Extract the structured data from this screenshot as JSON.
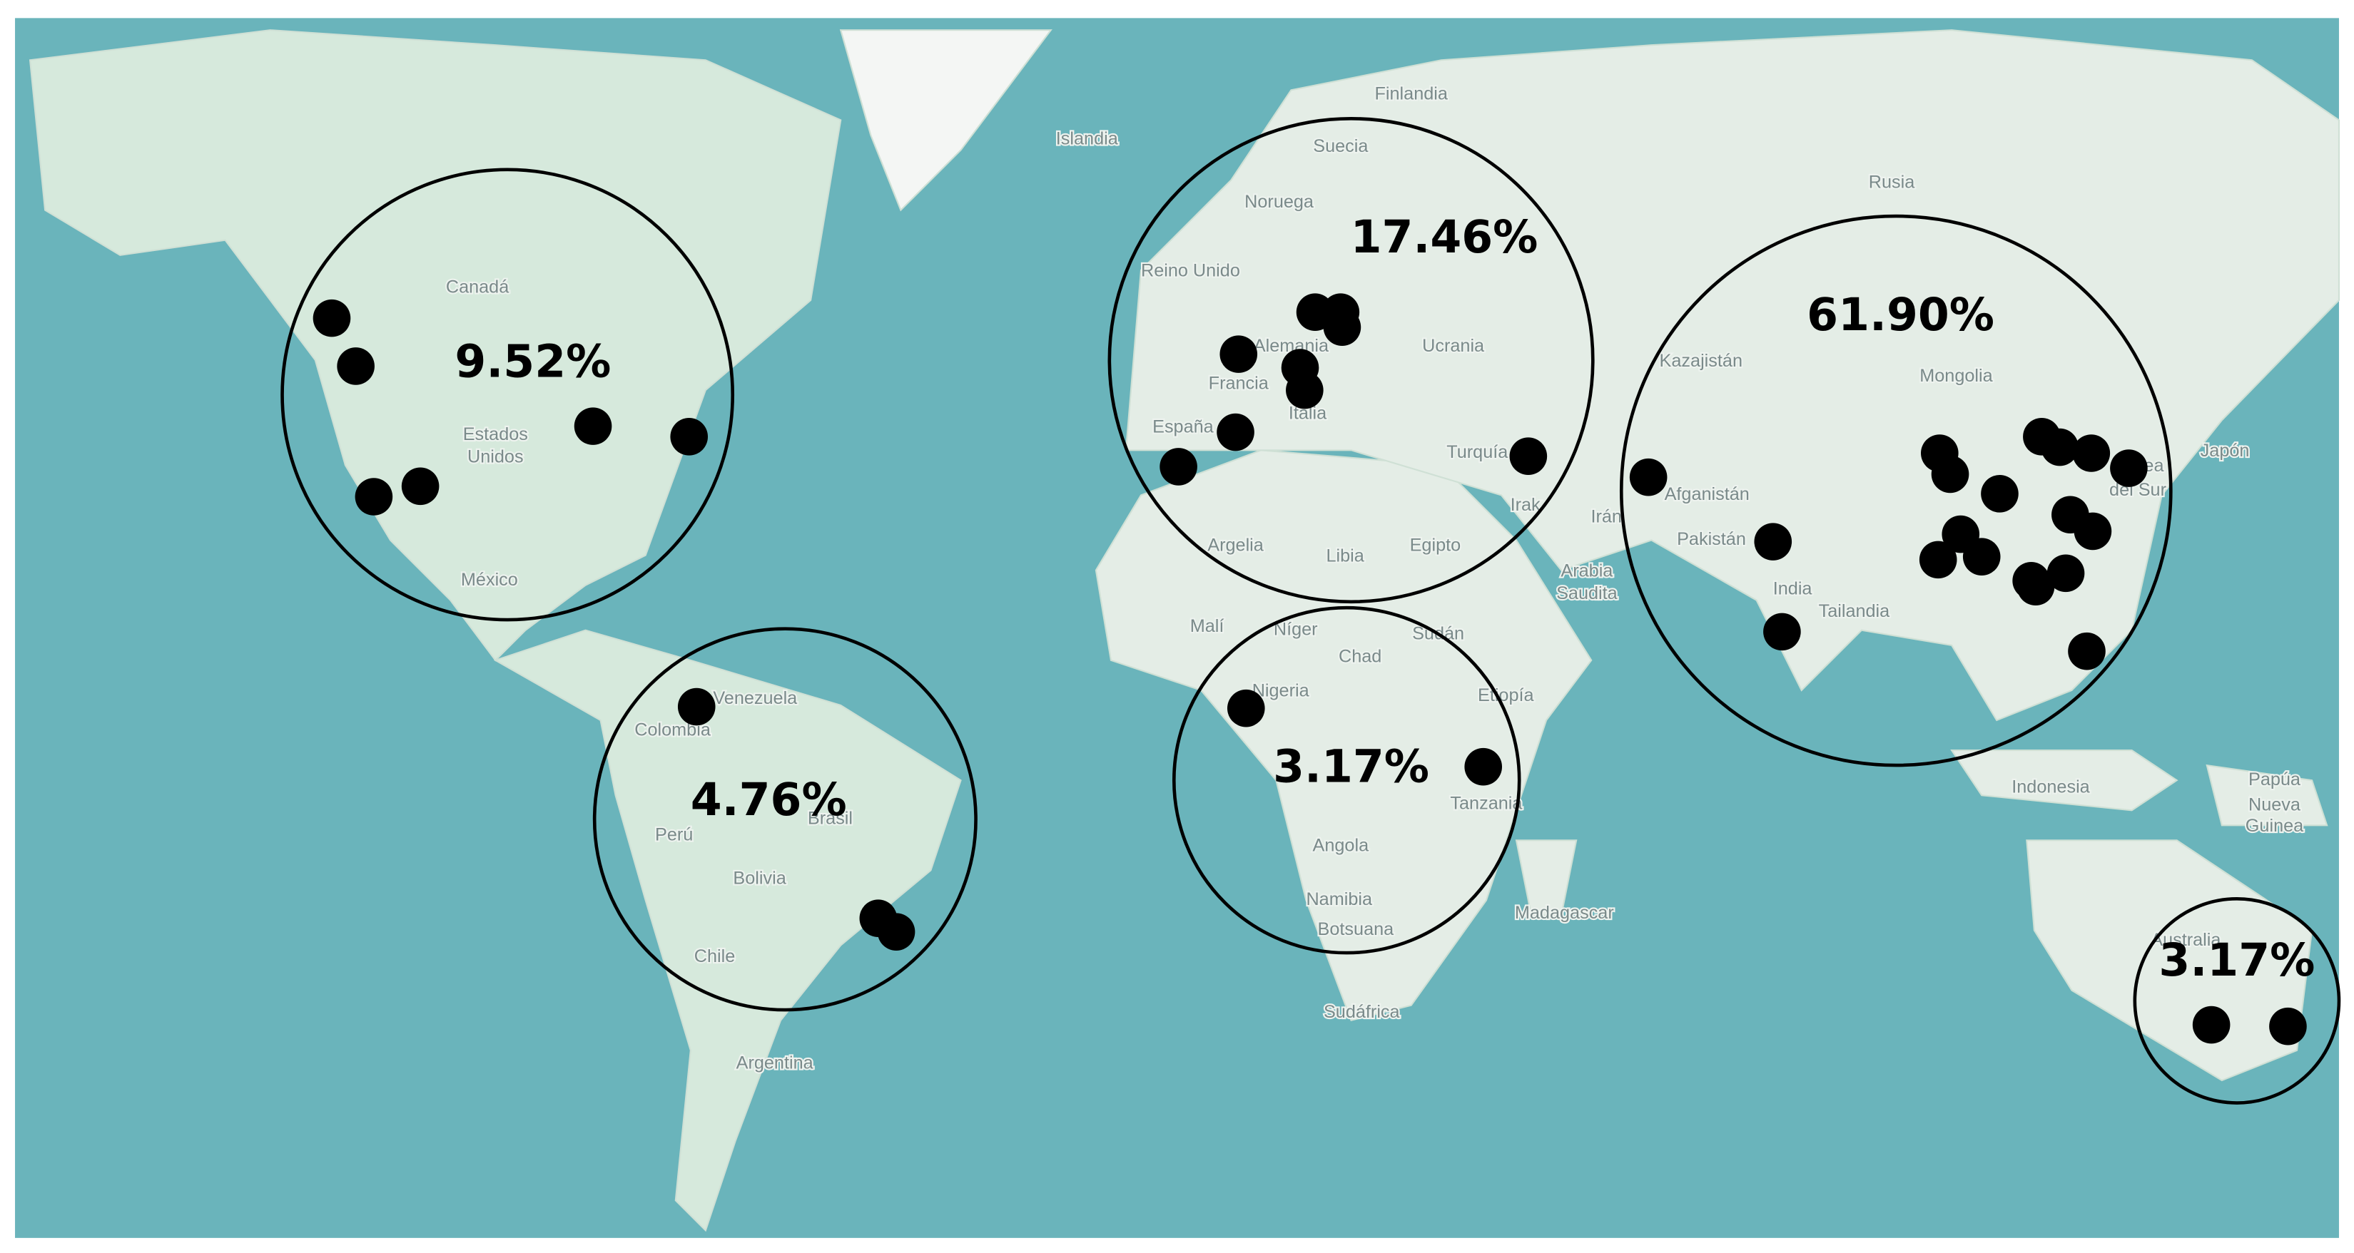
{
  "map_labels": [
    "Finlandia",
    "Islandia",
    "Suecia",
    "Noruega",
    "Rusia",
    "Reino Unido",
    "Canadá",
    "Estados",
    "Unidos",
    "México",
    "Alemania",
    "Francia",
    "Italia",
    "España",
    "Ucrania",
    "Turquía",
    "Kazajistán",
    "Mongolia",
    "Japón",
    "Afganistán",
    "Irán",
    "Irak",
    "Pakistán",
    "India",
    "Tailandia",
    "Arabia",
    "Saudita",
    "Egipto",
    "Libia",
    "Argelia",
    "Malí",
    "Níger",
    "Chad",
    "Sudán",
    "Nigeria",
    "Etiopía",
    "Tanzania",
    "Angola",
    "Namibia",
    "Botsuana",
    "Sudáfrica",
    "Madagascar",
    "Venezuela",
    "Colombia",
    "Perú",
    "Brasil",
    "Bolivia",
    "Chile",
    "Argentina",
    "Indonesia",
    "Papúa",
    "Nueva",
    "Guinea",
    "Australia",
    "Corea",
    "del Sur"
  ],
  "regions": [
    {
      "name": "north-america",
      "percent": "9.52%"
    },
    {
      "name": "south-america",
      "percent": "4.76%"
    },
    {
      "name": "europe",
      "percent": "17.46%"
    },
    {
      "name": "africa",
      "percent": "3.17%"
    },
    {
      "name": "asia",
      "percent": "61.90%"
    },
    {
      "name": "oceania",
      "percent": "3.17%"
    }
  ]
}
